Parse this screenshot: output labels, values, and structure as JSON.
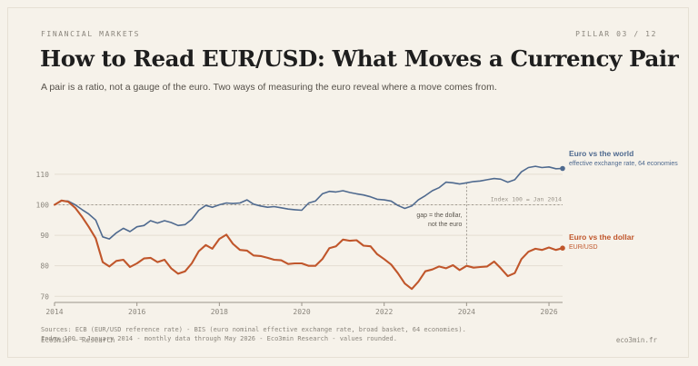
{
  "header": {
    "kicker": "FINANCIAL MARKETS",
    "pillar": "PILLAR 03 / 12",
    "title": "How to Read EUR/USD: What Moves a Currency Pair",
    "subtitle": "A pair is a ratio, not a gauge of the euro. Two ways of measuring the euro reveal where a move comes from."
  },
  "footer": {
    "sources": "Sources: ECB (EUR/USD reference rate) - BIS (euro nominal effective exchange rate, broad basket, 64 economies).",
    "notes": "Index 100 = January 2014 - monthly data through May 2026 - Eco3min Research - values rounded.",
    "brand": "Eco3min — Research",
    "site": "eco3min.fr"
  },
  "colors": {
    "world": "#4f6a8f",
    "dollar": "#c0562b",
    "grid": "#e4ded2",
    "axis": "#8a857c",
    "background": "#f6f2ea"
  },
  "chart_data": {
    "type": "line",
    "title": "",
    "xlabel": "",
    "ylabel": "",
    "x_range": [
      2014,
      2026.33
    ],
    "ylim": [
      68,
      118
    ],
    "y_ticks": [
      70,
      80,
      90,
      100,
      110
    ],
    "x_ticks": [
      "2014",
      "2016",
      "2018",
      "2020",
      "2022",
      "2024",
      "2026"
    ],
    "grid": true,
    "baseline": {
      "value": 100,
      "label": "Index 100 = Jan 2014"
    },
    "annotation": {
      "x": 2024,
      "lines": [
        "gap = the dollar,",
        "not the euro"
      ]
    },
    "series": [
      {
        "name": "Euro vs the world",
        "sublabel": "effective exchange rate, 64 economies",
        "color": "#4f6a8f",
        "points": [
          [
            2014.0,
            100
          ],
          [
            2014.17,
            101.3
          ],
          [
            2014.33,
            101.2
          ],
          [
            2014.5,
            100.0
          ],
          [
            2014.67,
            98.4
          ],
          [
            2014.83,
            97.0
          ],
          [
            2015.0,
            95.0
          ],
          [
            2015.17,
            89.5
          ],
          [
            2015.33,
            88.8
          ],
          [
            2015.5,
            90.8
          ],
          [
            2015.67,
            92.3
          ],
          [
            2015.83,
            91.2
          ],
          [
            2016.0,
            92.8
          ],
          [
            2016.17,
            93.2
          ],
          [
            2016.33,
            94.8
          ],
          [
            2016.5,
            94.0
          ],
          [
            2016.67,
            94.8
          ],
          [
            2016.83,
            94.2
          ],
          [
            2017.0,
            93.2
          ],
          [
            2017.17,
            93.5
          ],
          [
            2017.33,
            95.2
          ],
          [
            2017.5,
            98.2
          ],
          [
            2017.67,
            99.8
          ],
          [
            2017.83,
            99.2
          ],
          [
            2018.0,
            100.0
          ],
          [
            2018.17,
            100.6
          ],
          [
            2018.33,
            100.4
          ],
          [
            2018.5,
            100.6
          ],
          [
            2018.67,
            101.6
          ],
          [
            2018.83,
            100.2
          ],
          [
            2019.0,
            99.6
          ],
          [
            2019.17,
            99.2
          ],
          [
            2019.33,
            99.4
          ],
          [
            2019.5,
            99.0
          ],
          [
            2019.67,
            98.6
          ],
          [
            2019.83,
            98.4
          ],
          [
            2020.0,
            98.2
          ],
          [
            2020.17,
            100.6
          ],
          [
            2020.33,
            101.2
          ],
          [
            2020.5,
            103.6
          ],
          [
            2020.67,
            104.4
          ],
          [
            2020.83,
            104.2
          ],
          [
            2021.0,
            104.6
          ],
          [
            2021.17,
            104.0
          ],
          [
            2021.33,
            103.6
          ],
          [
            2021.5,
            103.2
          ],
          [
            2021.67,
            102.6
          ],
          [
            2021.83,
            101.8
          ],
          [
            2022.0,
            101.6
          ],
          [
            2022.17,
            101.2
          ],
          [
            2022.33,
            99.8
          ],
          [
            2022.5,
            98.8
          ],
          [
            2022.67,
            99.6
          ],
          [
            2022.83,
            101.6
          ],
          [
            2023.0,
            103.0
          ],
          [
            2023.17,
            104.6
          ],
          [
            2023.33,
            105.6
          ],
          [
            2023.5,
            107.4
          ],
          [
            2023.67,
            107.2
          ],
          [
            2023.83,
            106.8
          ],
          [
            2024.0,
            107.2
          ],
          [
            2024.17,
            107.6
          ],
          [
            2024.33,
            107.8
          ],
          [
            2024.5,
            108.2
          ],
          [
            2024.67,
            108.6
          ],
          [
            2024.83,
            108.4
          ],
          [
            2025.0,
            107.4
          ],
          [
            2025.17,
            108.2
          ],
          [
            2025.33,
            110.8
          ],
          [
            2025.5,
            112.2
          ],
          [
            2025.67,
            112.6
          ],
          [
            2025.83,
            112.2
          ],
          [
            2026.0,
            112.4
          ],
          [
            2026.17,
            111.8
          ],
          [
            2026.33,
            111.9
          ]
        ]
      },
      {
        "name": "Euro vs the dollar",
        "sublabel": "EUR/USD",
        "color": "#c0562b",
        "points": [
          [
            2014.0,
            100
          ],
          [
            2014.17,
            101.4
          ],
          [
            2014.33,
            101.0
          ],
          [
            2014.5,
            99.0
          ],
          [
            2014.67,
            96.0
          ],
          [
            2014.83,
            92.8
          ],
          [
            2015.0,
            89.0
          ],
          [
            2015.17,
            81.2
          ],
          [
            2015.33,
            79.8
          ],
          [
            2015.5,
            81.6
          ],
          [
            2015.67,
            82.0
          ],
          [
            2015.83,
            79.6
          ],
          [
            2016.0,
            80.8
          ],
          [
            2016.17,
            82.4
          ],
          [
            2016.33,
            82.6
          ],
          [
            2016.5,
            81.2
          ],
          [
            2016.67,
            82.0
          ],
          [
            2016.83,
            79.2
          ],
          [
            2017.0,
            77.4
          ],
          [
            2017.17,
            78.2
          ],
          [
            2017.33,
            80.8
          ],
          [
            2017.5,
            84.8
          ],
          [
            2017.67,
            86.8
          ],
          [
            2017.83,
            85.6
          ],
          [
            2018.0,
            88.8
          ],
          [
            2018.17,
            90.2
          ],
          [
            2018.33,
            87.2
          ],
          [
            2018.5,
            85.2
          ],
          [
            2018.67,
            85.0
          ],
          [
            2018.83,
            83.4
          ],
          [
            2019.0,
            83.2
          ],
          [
            2019.17,
            82.6
          ],
          [
            2019.33,
            82.0
          ],
          [
            2019.5,
            81.8
          ],
          [
            2019.67,
            80.6
          ],
          [
            2019.83,
            80.8
          ],
          [
            2020.0,
            80.8
          ],
          [
            2020.17,
            80.0
          ],
          [
            2020.33,
            80.0
          ],
          [
            2020.5,
            82.2
          ],
          [
            2020.67,
            85.8
          ],
          [
            2020.83,
            86.4
          ],
          [
            2021.0,
            88.6
          ],
          [
            2021.17,
            88.2
          ],
          [
            2021.33,
            88.4
          ],
          [
            2021.5,
            86.6
          ],
          [
            2021.67,
            86.4
          ],
          [
            2021.83,
            83.8
          ],
          [
            2022.0,
            82.2
          ],
          [
            2022.17,
            80.4
          ],
          [
            2022.33,
            77.6
          ],
          [
            2022.5,
            74.2
          ],
          [
            2022.67,
            72.4
          ],
          [
            2022.83,
            74.8
          ],
          [
            2023.0,
            78.2
          ],
          [
            2023.17,
            78.8
          ],
          [
            2023.33,
            79.8
          ],
          [
            2023.5,
            79.2
          ],
          [
            2023.67,
            80.2
          ],
          [
            2023.83,
            78.6
          ],
          [
            2024.0,
            80.0
          ],
          [
            2024.17,
            79.4
          ],
          [
            2024.33,
            79.6
          ],
          [
            2024.5,
            79.8
          ],
          [
            2024.67,
            81.4
          ],
          [
            2024.83,
            79.2
          ],
          [
            2025.0,
            76.6
          ],
          [
            2025.17,
            77.6
          ],
          [
            2025.33,
            82.2
          ],
          [
            2025.5,
            84.6
          ],
          [
            2025.67,
            85.6
          ],
          [
            2025.83,
            85.2
          ],
          [
            2026.0,
            86.0
          ],
          [
            2026.17,
            85.2
          ],
          [
            2026.33,
            85.8
          ]
        ]
      }
    ]
  }
}
